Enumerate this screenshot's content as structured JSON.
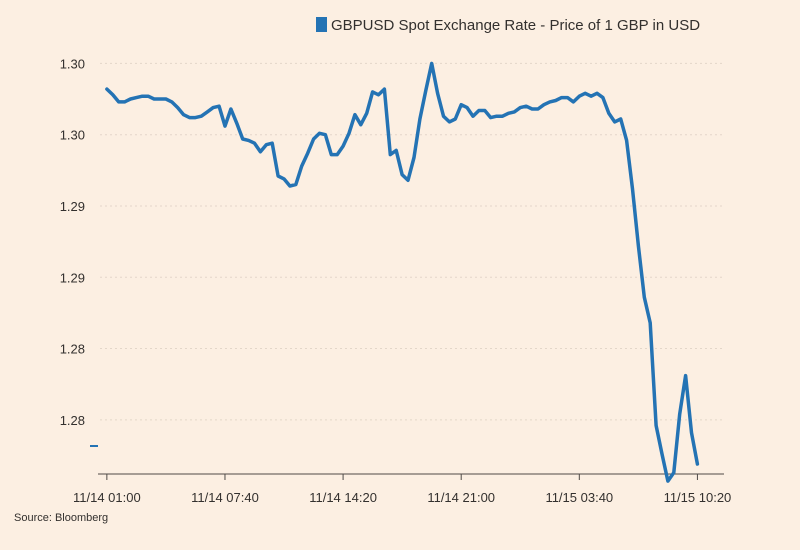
{
  "chart_data": {
    "type": "line",
    "title": "",
    "xlabel": "",
    "ylabel": "",
    "legend": {
      "position": "top",
      "color": "#2473b4"
    },
    "grid": true,
    "ylim": [
      1.2737,
      1.3033
    ],
    "y_ticks": [
      1.2775,
      1.2825,
      1.2875,
      1.2925,
      1.2975,
      1.3025
    ],
    "y_tick_labels": [
      "1.28",
      "1.28",
      "1.29",
      "1.29",
      "1.30",
      "1.30"
    ],
    "x_tick_labels": [
      "11/14 01:00",
      "11/14 07:40",
      "11/14 14:20",
      "11/14 21:00",
      "11/15 03:40",
      "11/15 10:20"
    ],
    "x_tick_positions": [
      0,
      20,
      40,
      60,
      80,
      100
    ],
    "xlim": [
      -1.5,
      104.5
    ],
    "source": "Source: Bloomberg",
    "series": [
      {
        "name": "GBPUSD Spot Exchange Rate - Price of 1 GBP in USD",
        "color": "#2473b4",
        "x": [
          0,
          1,
          2,
          3,
          4,
          5,
          6,
          7,
          8,
          9,
          10,
          11,
          12,
          13,
          14,
          15,
          16,
          17,
          18,
          19,
          20,
          21,
          22,
          23,
          24,
          25,
          26,
          27,
          28,
          29,
          30,
          31,
          32,
          33,
          34,
          35,
          36,
          37,
          38,
          39,
          40,
          41,
          42,
          43,
          44,
          45,
          46,
          47,
          48,
          49,
          50,
          51,
          52,
          53,
          54,
          55,
          56,
          57,
          58,
          59,
          60,
          61,
          62,
          63,
          64,
          65,
          66,
          67,
          68,
          69,
          70,
          71,
          72,
          73,
          74,
          75,
          76,
          77,
          78,
          79,
          80,
          81,
          82,
          83,
          84,
          85,
          86,
          87,
          88,
          89,
          90,
          91,
          92,
          93,
          94,
          95,
          96,
          97,
          98,
          99,
          100
        ],
        "values": [
          1.3007,
          1.3003,
          1.2998,
          1.2998,
          1.3,
          1.3001,
          1.3002,
          1.3002,
          1.3,
          1.3,
          1.3,
          1.2998,
          1.2994,
          1.2989,
          1.2987,
          1.2987,
          1.2988,
          1.2991,
          1.2994,
          1.2995,
          1.2981,
          1.2993,
          1.2983,
          1.2972,
          1.2971,
          1.2969,
          1.2963,
          1.2968,
          1.2969,
          1.2946,
          1.2944,
          1.2939,
          1.294,
          1.2953,
          1.2962,
          1.2972,
          1.2976,
          1.2975,
          1.2961,
          1.2961,
          1.2967,
          1.2976,
          1.2989,
          1.2982,
          1.299,
          1.3005,
          1.3003,
          1.3007,
          1.2961,
          1.2964,
          1.2947,
          1.2943,
          1.2959,
          1.2986,
          1.3006,
          1.3025,
          1.3004,
          1.2988,
          1.2984,
          1.2986,
          1.2996,
          1.2994,
          1.2988,
          1.2992,
          1.2992,
          1.2987,
          1.2988,
          1.2988,
          1.299,
          1.2991,
          1.2994,
          1.2995,
          1.2993,
          1.2993,
          1.2996,
          1.2998,
          1.2999,
          1.3001,
          1.3001,
          1.2998,
          1.3002,
          1.3004,
          1.3002,
          1.3004,
          1.3001,
          1.299,
          1.2984,
          1.2986,
          1.2971,
          1.2937,
          1.2897,
          1.2861,
          1.2843,
          1.2771,
          1.2751,
          1.2732,
          1.2738,
          1.2779,
          1.2806,
          1.2766,
          1.2744
        ]
      }
    ]
  }
}
